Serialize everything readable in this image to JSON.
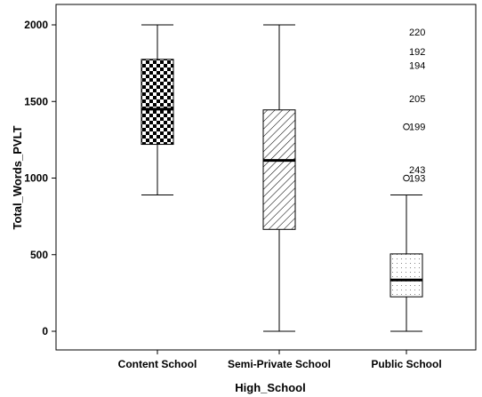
{
  "chart_data": {
    "type": "box",
    "title": "",
    "xlabel": "High_School",
    "ylabel": "Total_Words_PVLT",
    "ylim": [
      0,
      2000
    ],
    "yticks": [
      0,
      500,
      1000,
      1500,
      2000
    ],
    "grid": false,
    "legend": "none",
    "categories": [
      "Content School",
      "Semi-Private School",
      "Public School"
    ],
    "boxes": [
      {
        "category": "Content School",
        "whisker_low": 890,
        "q1": 1220,
        "median": 1450,
        "q3": 1775,
        "whisker_high": 2000,
        "pattern": "checkerboard",
        "outliers": [],
        "extremes": []
      },
      {
        "category": "Semi-Private School",
        "whisker_low": 0,
        "q1": 665,
        "median": 1115,
        "q3": 1445,
        "whisker_high": 2000,
        "pattern": "diagonal-hatch",
        "outliers": [],
        "extremes": []
      },
      {
        "category": "Public School",
        "whisker_low": 0,
        "q1": 225,
        "median": 335,
        "q3": 505,
        "whisker_high": 890,
        "pattern": "dotted",
        "outliers": [
          {
            "label": "199",
            "value": 1335
          },
          {
            "label": "193",
            "value": 1000
          }
        ],
        "extremes": [
          {
            "label": "220",
            "value": 1955
          },
          {
            "label": "192",
            "value": 1825
          },
          {
            "label": "194",
            "value": 1735
          },
          {
            "label": "205",
            "value": 1520
          },
          {
            "label": "243",
            "value": 1055
          }
        ]
      }
    ]
  }
}
